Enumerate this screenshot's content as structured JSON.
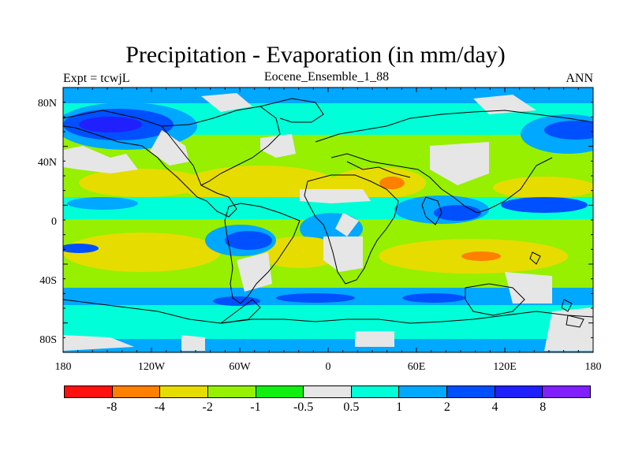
{
  "title": "Precipitation - Evaporation (in mm/day)",
  "left_subtitle": "Expt = tcwjL",
  "center_subtitle": "Eocene_Ensemble_1_88",
  "right_subtitle": "ANN",
  "map": {
    "lat_labels": [
      "80N",
      "40N",
      "0",
      "40S",
      "80S"
    ],
    "lon_labels": [
      "180",
      "120W",
      "60W",
      "0",
      "60E",
      "120E",
      "180"
    ],
    "land_color": "#e8e8e8"
  },
  "colorbar": {
    "labels": [
      "-8",
      "-4",
      "-2",
      "-1",
      "-0.5",
      "0.5",
      "1",
      "2",
      "4",
      "8"
    ],
    "colors": [
      "#ff1010",
      "#ff8000",
      "#e6dc00",
      "#96f000",
      "#10f010",
      "#e6e6e6",
      "#00ffd8",
      "#00a8ff",
      "#0050ff",
      "#2020ff",
      "#8020ff"
    ]
  }
}
